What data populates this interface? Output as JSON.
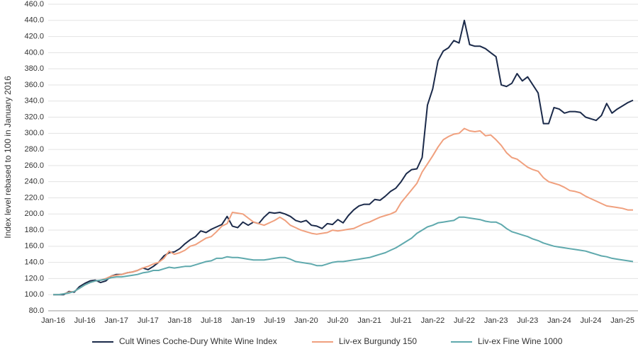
{
  "chart_data": {
    "type": "line",
    "y_label": "Index level rebased to 100 in January 2016",
    "categories": [
      "Jan-16",
      null,
      null,
      null,
      null,
      null,
      "Jul-16",
      null,
      null,
      null,
      null,
      null,
      "Jan-17",
      null,
      null,
      null,
      null,
      null,
      "Jul-17",
      null,
      null,
      null,
      null,
      null,
      "Jan-18",
      null,
      null,
      null,
      null,
      null,
      "Jul-18",
      null,
      null,
      null,
      null,
      null,
      "Jan-19",
      null,
      null,
      null,
      null,
      null,
      "Jul-19",
      null,
      null,
      null,
      null,
      null,
      "Jan-20",
      null,
      null,
      null,
      null,
      null,
      "Jul-20",
      null,
      null,
      null,
      null,
      null,
      "Jan-21",
      null,
      null,
      null,
      null,
      null,
      "Jul-21",
      null,
      null,
      null,
      null,
      null,
      "Jan-22",
      null,
      null,
      null,
      null,
      null,
      "Jul-22",
      null,
      null,
      null,
      null,
      null,
      "Jan-23",
      null,
      null,
      null,
      null,
      null,
      "Jul-23",
      null,
      null,
      null,
      null,
      null,
      "Jan-24",
      null,
      null,
      null,
      null,
      null,
      "Jul-24",
      null,
      null,
      null,
      null,
      null,
      "Jan-25",
      null,
      null
    ],
    "series": [
      {
        "name": "Cult Wines Coche-Dury White Wine Index",
        "color": "#1b2a4a",
        "values": [
          100,
          100,
          100,
          104,
          103,
          110,
          114,
          117,
          118,
          115,
          117,
          123,
          125,
          125,
          127,
          128,
          130,
          133,
          131,
          135,
          140,
          148,
          152,
          153,
          157,
          163,
          168,
          172,
          179,
          177,
          181,
          184,
          187,
          197,
          185,
          183,
          190,
          186,
          190,
          188,
          196,
          202,
          201,
          202,
          200,
          197,
          192,
          190,
          192,
          186,
          185,
          182,
          188,
          187,
          193,
          189,
          198,
          205,
          210,
          212,
          212,
          218,
          217,
          222,
          228,
          232,
          240,
          250,
          255,
          256,
          270,
          335,
          355,
          390,
          402,
          406,
          415,
          412,
          440,
          410,
          408,
          408,
          405,
          400,
          395,
          360,
          358,
          362,
          374,
          365,
          370,
          360,
          350,
          312,
          312,
          332,
          330,
          325,
          327,
          327,
          326,
          320,
          318,
          316,
          322,
          337,
          325,
          330,
          334,
          338,
          341
        ]
      },
      {
        "name": "Liv-ex Burgundy 150",
        "color": "#f0a07e",
        "values": [
          100,
          100,
          101,
          103,
          104,
          108,
          112,
          115,
          117,
          118,
          120,
          123,
          124,
          125,
          127,
          128,
          130,
          133,
          135,
          138,
          140,
          145,
          154,
          150,
          152,
          155,
          160,
          162,
          166,
          170,
          172,
          178,
          185,
          188,
          202,
          201,
          200,
          195,
          190,
          188,
          186,
          189,
          192,
          196,
          192,
          186,
          183,
          180,
          178,
          176,
          175,
          176,
          177,
          180,
          179,
          180,
          181,
          182,
          185,
          188,
          190,
          193,
          196,
          198,
          200,
          203,
          214,
          222,
          230,
          238,
          252,
          262,
          272,
          283,
          292,
          296,
          299,
          300,
          306,
          303,
          302,
          303,
          297,
          298,
          292,
          285,
          276,
          270,
          268,
          263,
          258,
          255,
          253,
          245,
          240,
          238,
          236,
          233,
          229,
          228,
          226,
          222,
          219,
          216,
          213,
          210,
          209,
          208,
          207,
          205,
          205
        ]
      },
      {
        "name": "Liv-ex Fine Wine 1000",
        "color": "#5fa9ad",
        "values": [
          100,
          100,
          101,
          102,
          104,
          108,
          112,
          115,
          117,
          118,
          119,
          121,
          122,
          122,
          123,
          124,
          125,
          127,
          128,
          130,
          130,
          132,
          134,
          133,
          134,
          135,
          135,
          137,
          139,
          141,
          142,
          145,
          145,
          147,
          146,
          146,
          145,
          144,
          143,
          143,
          143,
          144,
          145,
          146,
          146,
          144,
          141,
          140,
          139,
          138,
          136,
          136,
          138,
          140,
          141,
          141,
          142,
          143,
          144,
          145,
          146,
          148,
          150,
          152,
          155,
          158,
          162,
          166,
          170,
          176,
          180,
          184,
          186,
          189,
          190,
          191,
          192,
          196,
          196,
          195,
          194,
          193,
          191,
          190,
          190,
          187,
          182,
          178,
          176,
          174,
          172,
          169,
          167,
          164,
          162,
          160,
          159,
          158,
          157,
          156,
          155,
          154,
          152,
          150,
          148,
          147,
          145,
          144,
          143,
          142,
          141
        ]
      }
    ],
    "ylim": [
      80,
      460
    ],
    "yticks": [
      {
        "value": 80,
        "label": "80.0"
      },
      {
        "value": 100,
        "label": "100.0"
      },
      {
        "value": 120,
        "label": "120.0"
      },
      {
        "value": 140,
        "label": "140.0"
      },
      {
        "value": 160,
        "label": "160.0"
      },
      {
        "value": 180,
        "label": "180.0"
      },
      {
        "value": 200,
        "label": "200.0"
      },
      {
        "value": 220,
        "label": "220.0"
      },
      {
        "value": 240,
        "label": "240.0"
      },
      {
        "value": 260,
        "label": "260.0"
      },
      {
        "value": 280,
        "label": "280.0"
      },
      {
        "value": 300,
        "label": "300.0"
      },
      {
        "value": 320,
        "label": "320.0"
      },
      {
        "value": 340,
        "label": "340.0"
      },
      {
        "value": 360,
        "label": "360.0"
      },
      {
        "value": 380,
        "label": "380.0"
      },
      {
        "value": 400,
        "label": "400.0"
      },
      {
        "value": 420,
        "label": "420.0"
      },
      {
        "value": 440,
        "label": "440.0"
      },
      {
        "value": 460,
        "label": "460.0"
      }
    ],
    "grid": true,
    "legend": "bottom"
  }
}
